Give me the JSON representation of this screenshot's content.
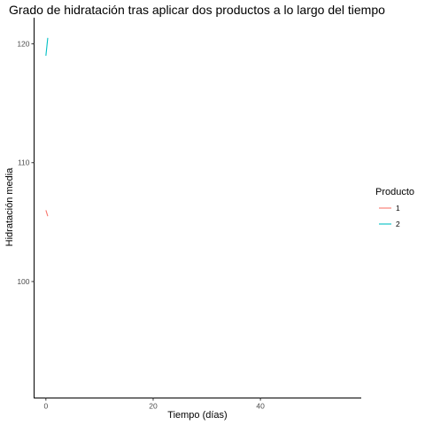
{
  "chart_data": {
    "type": "line",
    "title": "Grado de hidratación tras aplicar dos productos a lo largo del tiempo",
    "xlabel": "Tiempo (días)",
    "ylabel": "Hidratación media",
    "xlim": [
      -2.2,
      58.8
    ],
    "ylim": [
      90.2,
      122.2
    ],
    "x_ticks": [
      0,
      20,
      40
    ],
    "y_ticks": [
      100,
      110,
      120
    ],
    "grid": false,
    "legend": {
      "title": "Producto",
      "position": "right"
    },
    "series": [
      {
        "name": "1",
        "color": "#F8766D",
        "points": [
          [
            0,
            106.0
          ],
          [
            0.35,
            105.5
          ]
        ]
      },
      {
        "name": "2",
        "color": "#00BFC4",
        "points": [
          [
            0,
            119.0
          ],
          [
            0.35,
            120.5
          ]
        ]
      }
    ]
  }
}
